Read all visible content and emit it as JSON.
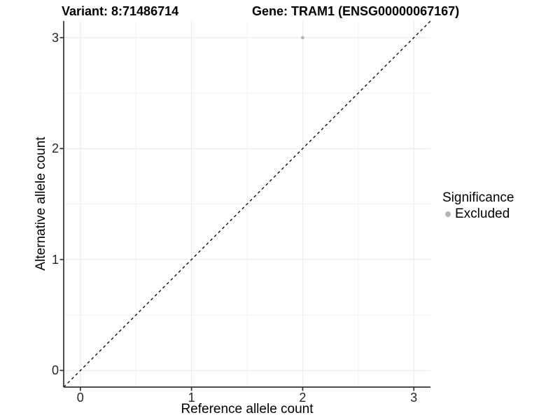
{
  "titles": {
    "variant": "Variant: 8:71486714",
    "gene": "Gene: TRAM1 (ENSG00000067167)"
  },
  "chart_data": {
    "type": "scatter",
    "title": "Variant: 8:71486714  /  Gene: TRAM1 (ENSG00000067167)",
    "xlabel": "Reference allele count",
    "ylabel": "Alternative allele count",
    "xlim": [
      -0.15,
      3.15
    ],
    "ylim": [
      -0.15,
      3.15
    ],
    "x_major_ticks": [
      0,
      1,
      2,
      3
    ],
    "y_major_ticks": [
      0,
      1,
      2,
      3
    ],
    "x_minor_ticks": [
      0.5,
      1.5,
      2.5
    ],
    "y_minor_ticks": [
      0.5,
      1.5,
      2.5
    ],
    "grid": "major+minor",
    "identity_line": {
      "slope": 1,
      "intercept": 0,
      "style": "dashed",
      "color": "#000000"
    },
    "series": [
      {
        "name": "Excluded",
        "color": "#b3b3b3",
        "points": [
          {
            "x": 2,
            "y": 3
          }
        ]
      }
    ],
    "legend": {
      "title": "Significance",
      "position": "right",
      "entries": [
        {
          "label": "Excluded",
          "color": "#b3b3b3",
          "marker": "circle"
        }
      ]
    }
  },
  "colors": {
    "background": "#ffffff",
    "axis_line": "#333333",
    "tick_mark": "#333333",
    "tick_text": "#262626",
    "grid_major": "#e9e9e9",
    "grid_minor": "#f2f2f2",
    "point": "#b3b3b3",
    "identity_line": "#000000"
  }
}
